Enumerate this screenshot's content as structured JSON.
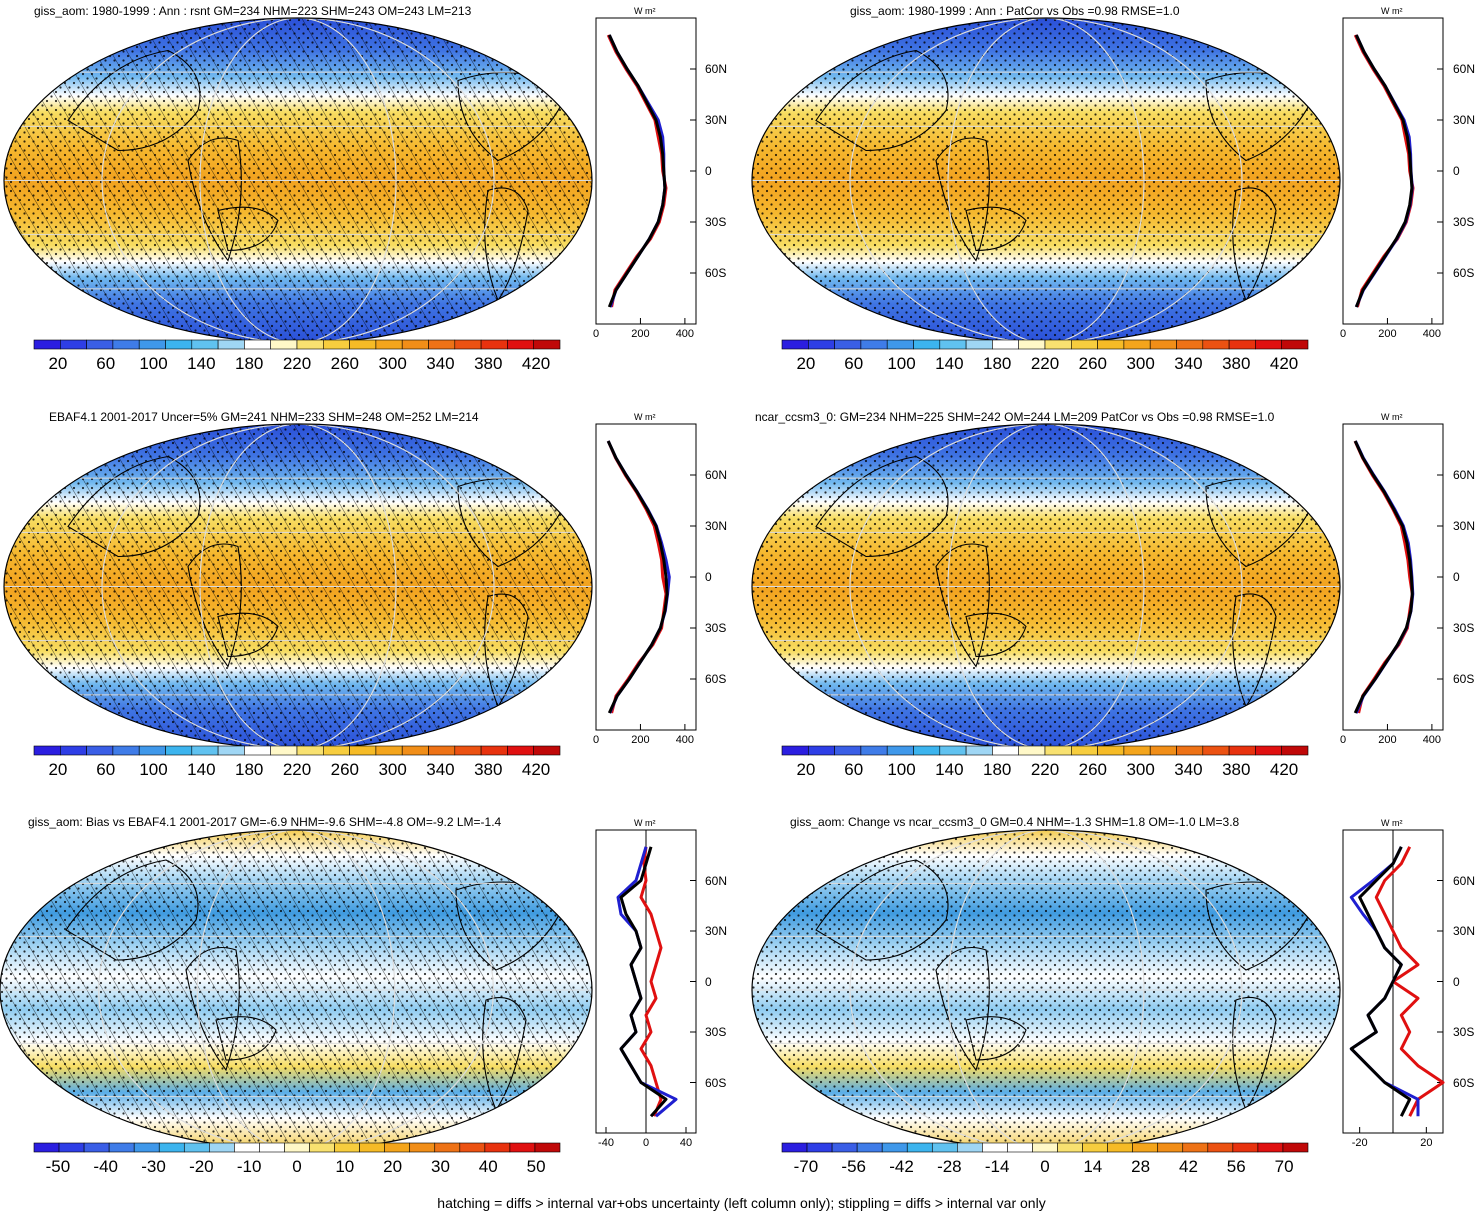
{
  "footnote": "hatching = diffs > internal var+obs uncertainty (left column only); stippling = diffs > internal var only",
  "profile_units": "W m²",
  "lat_labels": [
    "60N",
    "30N",
    "0",
    "30S",
    "60S"
  ],
  "colors": {
    "model": "#000000",
    "obs": "#1f1fd0",
    "alt": "#e01010"
  },
  "chart_data": [
    {
      "type": "heatmap",
      "title": "giss_aom: 1980-1999 : Ann : rsnt GM=234 NHM=223 SHM=243 OM=243 LM=213",
      "colorbar_ticks": [
        "20",
        "60",
        "100",
        "140",
        "180",
        "220",
        "260",
        "300",
        "340",
        "380",
        "420"
      ],
      "colorbar_range": [
        0,
        440
      ],
      "palette": "warm",
      "pattern": "hatch+stipple",
      "profile": {
        "xticks": [
          "0",
          "200",
          "400"
        ],
        "xlim": [
          0,
          450
        ],
        "lat": [
          -80,
          -70,
          -60,
          -50,
          -40,
          -30,
          -20,
          -10,
          0,
          10,
          20,
          30,
          40,
          50,
          60,
          70,
          80
        ],
        "black": [
          60,
          90,
          140,
          190,
          240,
          280,
          300,
          310,
          305,
          300,
          290,
          270,
          230,
          190,
          140,
          95,
          60
        ],
        "blue": [
          65,
          90,
          140,
          190,
          240,
          280,
          300,
          310,
          305,
          305,
          300,
          280,
          235,
          190,
          140,
          95,
          60
        ],
        "red": [
          70,
          85,
          135,
          185,
          245,
          285,
          305,
          315,
          300,
          295,
          280,
          265,
          225,
          185,
          135,
          90,
          55
        ]
      }
    },
    {
      "type": "heatmap",
      "title": "giss_aom: 1980-1999 : Ann : PatCor vs Obs =0.98 RMSE=1.0",
      "colorbar_ticks": [
        "20",
        "60",
        "100",
        "140",
        "180",
        "220",
        "260",
        "300",
        "340",
        "380",
        "420"
      ],
      "colorbar_range": [
        0,
        440
      ],
      "palette": "warm",
      "pattern": "stipple",
      "profile": {
        "xticks": [
          "0",
          "200",
          "400"
        ],
        "xlim": [
          0,
          450
        ],
        "lat": [
          -80,
          -70,
          -60,
          -50,
          -40,
          -30,
          -20,
          -10,
          0,
          10,
          20,
          30,
          40,
          50,
          60,
          70,
          80
        ],
        "black": [
          60,
          90,
          140,
          190,
          240,
          280,
          300,
          310,
          305,
          300,
          290,
          270,
          230,
          190,
          140,
          95,
          60
        ],
        "blue": [
          60,
          92,
          142,
          192,
          242,
          282,
          302,
          312,
          306,
          304,
          298,
          275,
          232,
          190,
          140,
          95,
          60
        ],
        "red": [
          65,
          85,
          135,
          185,
          245,
          285,
          305,
          315,
          300,
          295,
          280,
          265,
          225,
          185,
          135,
          90,
          55
        ]
      }
    },
    {
      "type": "heatmap",
      "title": "EBAF4.1 2001-2017 Uncer=5% GM=241 NHM=233 SHM=248 OM=252 LM=214",
      "colorbar_ticks": [
        "20",
        "60",
        "100",
        "140",
        "180",
        "220",
        "260",
        "300",
        "340",
        "380",
        "420"
      ],
      "colorbar_range": [
        0,
        440
      ],
      "palette": "warm",
      "pattern": "hatch+stipple",
      "profile": {
        "xticks": [
          "0",
          "200",
          "400"
        ],
        "xlim": [
          0,
          450
        ],
        "lat": [
          -80,
          -70,
          -60,
          -50,
          -40,
          -30,
          -20,
          -10,
          0,
          10,
          20,
          30,
          40,
          50,
          60,
          70,
          80
        ],
        "black": [
          60,
          95,
          150,
          200,
          250,
          290,
          310,
          320,
          315,
          305,
          290,
          270,
          230,
          185,
          135,
          90,
          55
        ],
        "blue": [
          62,
          95,
          150,
          200,
          250,
          290,
          312,
          322,
          330,
          315,
          295,
          272,
          232,
          186,
          136,
          90,
          55
        ],
        "red": [
          70,
          90,
          145,
          195,
          255,
          295,
          305,
          315,
          300,
          295,
          280,
          262,
          225,
          182,
          132,
          88,
          55
        ]
      }
    },
    {
      "type": "heatmap",
      "title": "ncar_ccsm3_0: GM=234 NHM=225 SHM=242 OM=244 LM=209 PatCor vs Obs =0.98 RMSE=1.0",
      "colorbar_ticks": [
        "20",
        "60",
        "100",
        "140",
        "180",
        "220",
        "260",
        "300",
        "340",
        "380",
        "420"
      ],
      "colorbar_range": [
        0,
        440
      ],
      "palette": "warm",
      "pattern": "stipple",
      "profile": {
        "xticks": [
          "0",
          "200",
          "400"
        ],
        "xlim": [
          0,
          450
        ],
        "lat": [
          -80,
          -70,
          -60,
          -50,
          -40,
          -30,
          -20,
          -10,
          0,
          10,
          20,
          30,
          40,
          50,
          60,
          70,
          80
        ],
        "black": [
          55,
          90,
          145,
          195,
          245,
          285,
          305,
          312,
          308,
          300,
          288,
          268,
          228,
          186,
          136,
          90,
          55
        ],
        "blue": [
          60,
          92,
          146,
          196,
          246,
          286,
          306,
          314,
          310,
          304,
          294,
          272,
          232,
          188,
          138,
          92,
          56
        ],
        "red": [
          70,
          88,
          140,
          190,
          250,
          290,
          300,
          312,
          300,
          292,
          278,
          262,
          224,
          182,
          132,
          88,
          54
        ]
      }
    },
    {
      "type": "heatmap",
      "title": "giss_aom: Bias vs EBAF4.1 2001-2017 GM=-6.9 NHM=-9.6 SHM=-4.8 OM=-9.2 LM=-1.4",
      "colorbar_ticks": [
        "-50",
        "-40",
        "-30",
        "-20",
        "-10",
        "0",
        "10",
        "20",
        "30",
        "40",
        "50"
      ],
      "colorbar_range": [
        -55,
        55
      ],
      "palette": "diverging",
      "pattern": "hatch+stipple",
      "profile": {
        "xticks": [
          "-40",
          "0",
          "40"
        ],
        "xlim": [
          -50,
          50
        ],
        "lat": [
          -80,
          -70,
          -60,
          -50,
          -40,
          -30,
          -20,
          -10,
          0,
          10,
          20,
          30,
          40,
          50,
          60,
          70,
          80
        ],
        "black": [
          5,
          20,
          -5,
          -15,
          -25,
          -10,
          -15,
          -5,
          -10,
          -15,
          -5,
          -10,
          -20,
          -25,
          -5,
          0,
          5
        ],
        "blue": [
          10,
          30,
          -5,
          -15,
          -25,
          -10,
          -15,
          -5,
          -10,
          -15,
          -5,
          -10,
          -25,
          -28,
          -10,
          -5,
          0
        ],
        "red": [
          8,
          15,
          10,
          5,
          -5,
          5,
          0,
          10,
          5,
          10,
          15,
          10,
          5,
          -5,
          0,
          -2,
          0
        ]
      }
    },
    {
      "type": "heatmap",
      "title": "giss_aom: Change vs ncar_ccsm3_0 GM=0.4 NHM=-1.3 SHM=1.8 OM=-1.0 LM=3.8",
      "colorbar_ticks": [
        "-70",
        "-56",
        "-42",
        "-28",
        "-14",
        "0",
        "14",
        "28",
        "42",
        "56",
        "70"
      ],
      "colorbar_range": [
        -77,
        77
      ],
      "palette": "diverging",
      "pattern": "stipple",
      "profile": {
        "xticks": [
          "-20",
          "20"
        ],
        "xlim": [
          -30,
          30
        ],
        "lat": [
          -80,
          -70,
          -60,
          -50,
          -40,
          -30,
          -20,
          -10,
          0,
          10,
          20,
          30,
          40,
          50,
          60,
          70,
          80
        ],
        "black": [
          5,
          10,
          -5,
          -15,
          -25,
          -10,
          -15,
          -5,
          0,
          5,
          -5,
          -10,
          -15,
          -20,
          -10,
          0,
          5
        ],
        "blue": [
          15,
          15,
          -5,
          -15,
          -25,
          -10,
          -15,
          -5,
          0,
          5,
          -5,
          -10,
          -18,
          -25,
          -12,
          0,
          5
        ],
        "red": [
          10,
          15,
          30,
          15,
          5,
          10,
          5,
          15,
          0,
          15,
          5,
          0,
          -5,
          -10,
          -5,
          5,
          10
        ]
      }
    }
  ]
}
